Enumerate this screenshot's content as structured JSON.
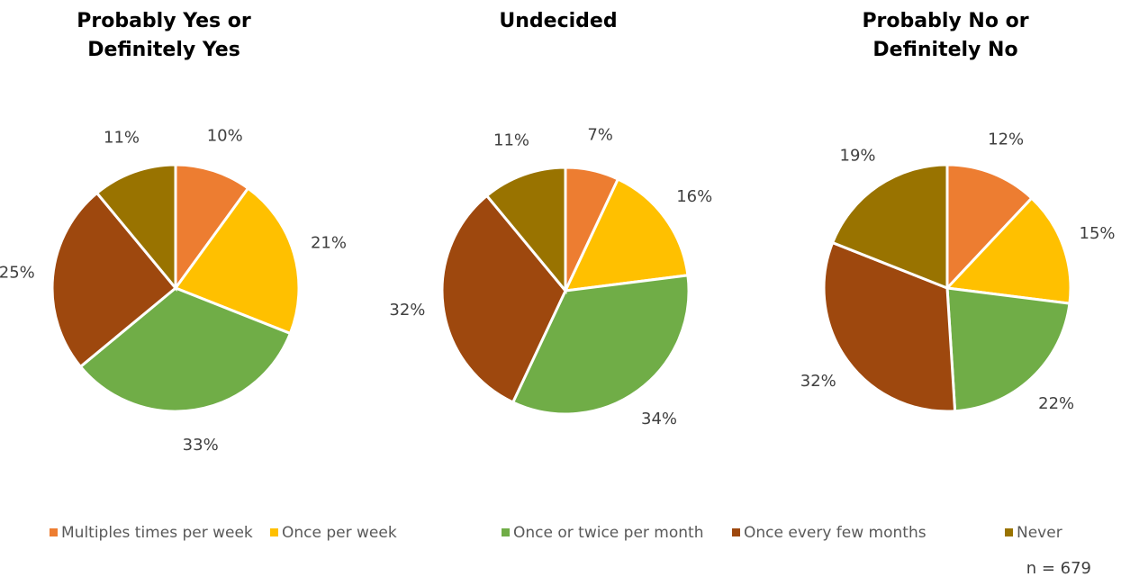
{
  "chart_data": [
    {
      "type": "pie",
      "title": "Probably Yes or Definitely Yes",
      "values": [
        10,
        21,
        33,
        25,
        11
      ],
      "value_labels": [
        "10%",
        "21%",
        "33%",
        "25%",
        "11%"
      ]
    },
    {
      "type": "pie",
      "title": "Undecided",
      "values": [
        7,
        16,
        34,
        32,
        11
      ],
      "value_labels": [
        "7%",
        "16%",
        "34%",
        "32%",
        "11%"
      ]
    },
    {
      "type": "pie",
      "title": "Probably No or Definitely No",
      "values": [
        12,
        15,
        22,
        32,
        19
      ],
      "value_labels": [
        "12%",
        "15%",
        "22%",
        "32%",
        "19%"
      ]
    }
  ],
  "legend": {
    "series": [
      {
        "name": "Multiples times per week",
        "color": "#ED7D31"
      },
      {
        "name": "Once per week",
        "color": "#FFC000"
      },
      {
        "name": "Once or twice per month",
        "color": "#70AD47"
      },
      {
        "name": "Once every few months",
        "color": "#9E480E"
      },
      {
        "name": "Never",
        "color": "#997300"
      }
    ]
  },
  "note": "n = 679"
}
